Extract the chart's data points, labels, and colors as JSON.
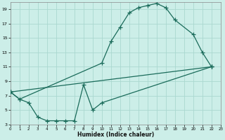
{
  "xlabel": "Humidex (Indice chaleur)",
  "bg_color": "#cceee8",
  "grid_color": "#aad8d0",
  "line_color": "#1a6b5a",
  "xlim": [
    0,
    23
  ],
  "ylim": [
    3,
    20
  ],
  "xticks": [
    0,
    1,
    2,
    3,
    4,
    5,
    6,
    7,
    8,
    9,
    10,
    11,
    12,
    13,
    14,
    15,
    16,
    17,
    18,
    19,
    20,
    21,
    22,
    23
  ],
  "yticks": [
    3,
    5,
    7,
    9,
    11,
    13,
    15,
    17,
    19
  ],
  "line1_x": [
    0,
    1,
    10,
    11,
    12,
    13,
    14,
    15,
    16,
    17,
    18,
    20,
    21,
    22
  ],
  "line1_y": [
    7.5,
    6.5,
    11.5,
    14.5,
    16.5,
    18.5,
    19.2,
    19.5,
    19.8,
    19.2,
    17.5,
    15.5,
    13.0,
    11.0
  ],
  "line2_x": [
    0,
    1,
    2,
    3,
    4,
    5,
    6,
    7,
    8,
    9,
    10,
    22
  ],
  "line2_y": [
    7.5,
    6.5,
    6.0,
    4.0,
    3.5,
    3.5,
    3.5,
    3.5,
    8.5,
    5.0,
    6.0,
    11.0
  ],
  "line3_x": [
    0,
    22
  ],
  "line3_y": [
    7.5,
    11.0
  ]
}
